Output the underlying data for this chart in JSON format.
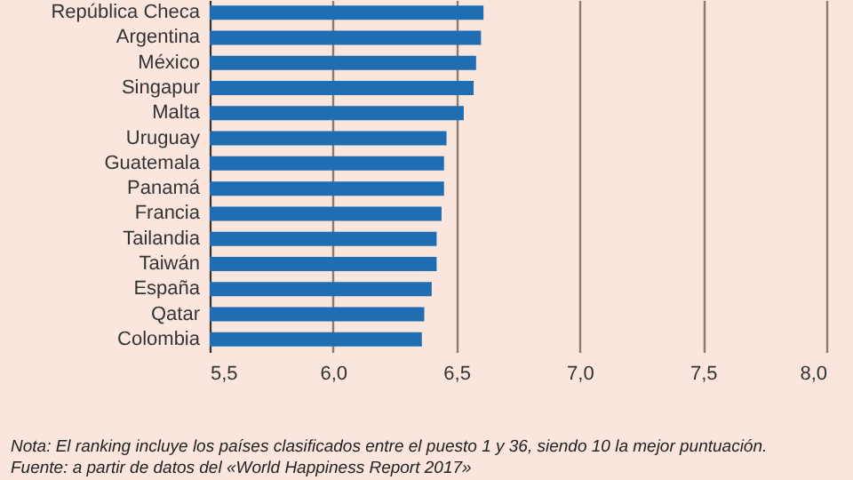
{
  "chart_data": {
    "type": "bar",
    "orientation": "horizontal",
    "categories": [
      "República Checa",
      "Argentina",
      "México",
      "Singapur",
      "Malta",
      "Uruguay",
      "Guatemala",
      "Panamá",
      "Francia",
      "Tailandia",
      "Taiwán",
      "España",
      "Qatar",
      "Colombia"
    ],
    "values": [
      6.61,
      6.6,
      6.58,
      6.57,
      6.53,
      6.46,
      6.45,
      6.45,
      6.44,
      6.42,
      6.42,
      6.4,
      6.37,
      6.36
    ],
    "color": "#1f6db3",
    "xlim": [
      5.5,
      8.0
    ],
    "xticks": [
      {
        "value": 5.5,
        "label": "5,5"
      },
      {
        "value": 6.0,
        "label": "6,0"
      },
      {
        "value": 6.5,
        "label": "6,5"
      },
      {
        "value": 7.0,
        "label": "7,0"
      },
      {
        "value": 7.5,
        "label": "7,5"
      },
      {
        "value": 8.0,
        "label": "8,0"
      }
    ],
    "grid": "x",
    "annotations": [
      "Nota: El ranking incluye los países clasificados entre el puesto 1 y 36, siendo 10 la mejor puntuación.",
      "Fuente: a partir de datos del «World Happiness Report 2017»"
    ]
  }
}
